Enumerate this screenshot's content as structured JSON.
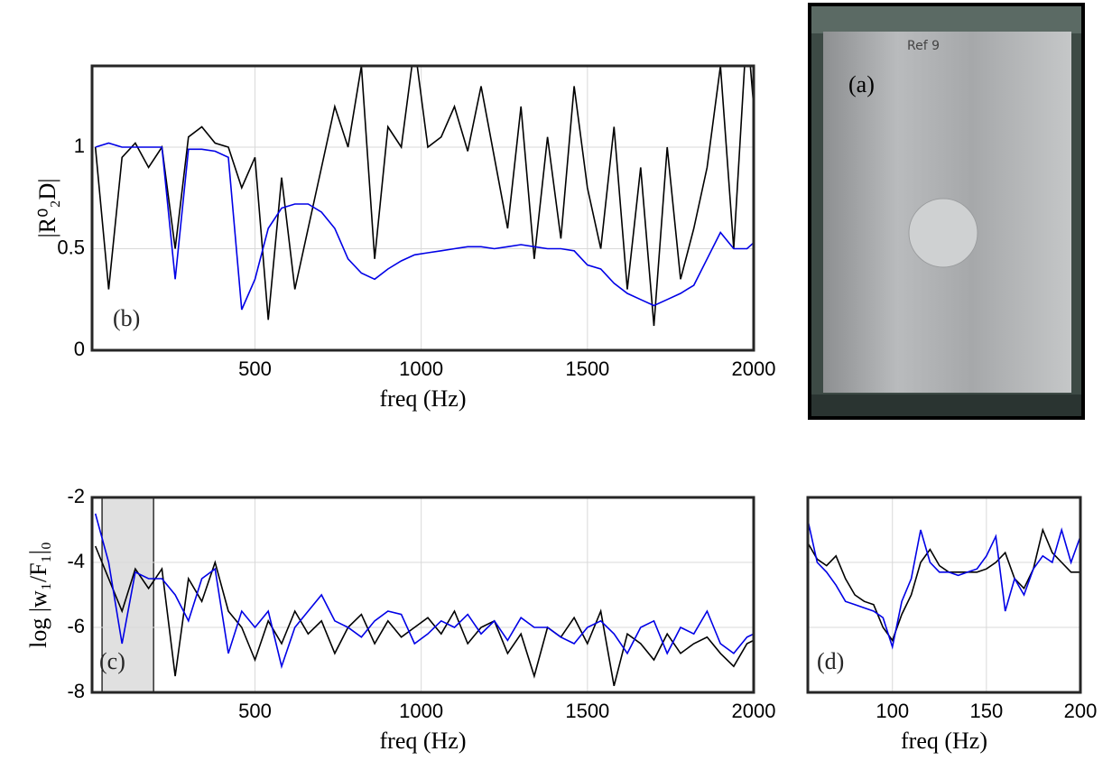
{
  "chart_data": [
    {
      "type": "line",
      "annotation": "(b)",
      "xlabel": "freq (Hz)",
      "ylabel": "|R⁰₂D|",
      "xlim": [
        10,
        2000
      ],
      "ylim": [
        0,
        1.4
      ],
      "xticks": [
        500,
        1000,
        1500,
        2000
      ],
      "yticks": [
        0,
        0.5,
        1
      ],
      "grid": true,
      "x": [
        20,
        60,
        100,
        140,
        180,
        220,
        260,
        300,
        340,
        380,
        420,
        460,
        500,
        540,
        580,
        620,
        660,
        700,
        740,
        780,
        820,
        860,
        900,
        940,
        980,
        1020,
        1060,
        1100,
        1140,
        1180,
        1220,
        1260,
        1300,
        1340,
        1380,
        1420,
        1460,
        1500,
        1540,
        1580,
        1620,
        1660,
        1700,
        1740,
        1780,
        1820,
        1860,
        1900,
        1940,
        1980,
        2000
      ],
      "series": [
        {
          "color": "#000000",
          "values": [
            1.0,
            0.3,
            0.95,
            1.02,
            0.9,
            1.0,
            0.5,
            1.05,
            1.1,
            1.02,
            1.0,
            0.8,
            0.95,
            0.15,
            0.85,
            0.3,
            0.6,
            0.9,
            1.2,
            1.0,
            1.4,
            0.45,
            1.1,
            1.0,
            1.5,
            1.0,
            1.05,
            1.2,
            0.98,
            1.3,
            0.95,
            0.6,
            1.2,
            0.45,
            1.05,
            0.55,
            1.3,
            0.8,
            0.5,
            1.1,
            0.3,
            0.9,
            0.12,
            1.0,
            0.35,
            0.6,
            0.9,
            1.4,
            0.5,
            1.6,
            1.2
          ]
        },
        {
          "color": "#0000e6",
          "values": [
            1.0,
            1.02,
            1.0,
            1.0,
            1.0,
            1.0,
            0.35,
            0.99,
            0.99,
            0.98,
            0.95,
            0.2,
            0.35,
            0.6,
            0.7,
            0.72,
            0.72,
            0.68,
            0.6,
            0.45,
            0.38,
            0.35,
            0.4,
            0.44,
            0.47,
            0.48,
            0.49,
            0.5,
            0.51,
            0.51,
            0.5,
            0.51,
            0.52,
            0.51,
            0.5,
            0.5,
            0.49,
            0.42,
            0.4,
            0.33,
            0.28,
            0.25,
            0.22,
            0.25,
            0.28,
            0.32,
            0.45,
            0.58,
            0.5,
            0.5,
            0.53
          ]
        }
      ]
    },
    {
      "type": "line",
      "annotation": "(c)",
      "xlabel": "freq (Hz)",
      "ylabel": "log |w₁/F₁|₀",
      "xlim": [
        10,
        2000
      ],
      "ylim": [
        -8,
        -2
      ],
      "xticks": [
        500,
        1000,
        1500,
        2000
      ],
      "yticks": [
        -8,
        -6,
        -4,
        -2
      ],
      "grid": true,
      "highlight_x": [
        40,
        195
      ],
      "x": [
        20,
        60,
        100,
        140,
        180,
        220,
        260,
        300,
        340,
        380,
        420,
        460,
        500,
        540,
        580,
        620,
        660,
        700,
        740,
        780,
        820,
        860,
        900,
        940,
        980,
        1020,
        1060,
        1100,
        1140,
        1180,
        1220,
        1260,
        1300,
        1340,
        1380,
        1420,
        1460,
        1500,
        1540,
        1580,
        1620,
        1660,
        1700,
        1740,
        1780,
        1820,
        1860,
        1900,
        1940,
        1980,
        2000
      ],
      "series": [
        {
          "color": "#000000",
          "values": [
            -3.5,
            -4.5,
            -5.5,
            -4.2,
            -4.8,
            -4.2,
            -7.5,
            -4.5,
            -5.2,
            -4.0,
            -5.5,
            -6.0,
            -7.0,
            -5.8,
            -6.5,
            -5.5,
            -6.2,
            -5.8,
            -6.8,
            -6.0,
            -5.6,
            -6.5,
            -5.8,
            -6.3,
            -6.0,
            -5.7,
            -6.2,
            -5.5,
            -6.5,
            -6.0,
            -5.8,
            -6.8,
            -6.2,
            -7.5,
            -6.0,
            -6.3,
            -5.7,
            -6.5,
            -5.5,
            -7.8,
            -6.2,
            -6.5,
            -7.0,
            -6.2,
            -6.8,
            -6.5,
            -6.3,
            -6.8,
            -7.2,
            -6.5,
            -6.4
          ]
        },
        {
          "color": "#0000e6",
          "values": [
            -2.5,
            -4.0,
            -6.5,
            -4.3,
            -4.5,
            -4.5,
            -5.0,
            -5.8,
            -4.5,
            -4.2,
            -6.8,
            -5.5,
            -6.0,
            -5.5,
            -7.2,
            -6.0,
            -5.5,
            -5.0,
            -5.8,
            -6.0,
            -6.3,
            -5.8,
            -5.5,
            -5.6,
            -6.5,
            -6.2,
            -5.8,
            -6.0,
            -5.6,
            -6.2,
            -5.8,
            -6.4,
            -5.7,
            -6.0,
            -6.0,
            -6.3,
            -6.5,
            -6.0,
            -5.8,
            -6.2,
            -6.8,
            -6.0,
            -5.8,
            -6.8,
            -6.0,
            -6.2,
            -5.5,
            -6.5,
            -6.8,
            -6.3,
            -6.2
          ]
        }
      ]
    },
    {
      "type": "line",
      "annotation": "(d)",
      "xlabel": "freq (Hz)",
      "xlim": [
        55,
        200
      ],
      "ylim": [
        -8,
        -2
      ],
      "xticks": [
        100,
        150,
        200
      ],
      "yticks": [
        -8,
        -6,
        -4,
        -2
      ],
      "grid": true,
      "ytick_labels": false,
      "x": [
        55,
        60,
        65,
        70,
        75,
        80,
        85,
        90,
        95,
        100,
        105,
        110,
        115,
        120,
        125,
        130,
        135,
        140,
        145,
        150,
        155,
        160,
        165,
        170,
        175,
        180,
        185,
        190,
        195,
        200
      ],
      "series": [
        {
          "color": "#000000",
          "values": [
            -3.4,
            -3.9,
            -4.1,
            -3.8,
            -4.5,
            -5.0,
            -5.2,
            -5.3,
            -6.0,
            -6.4,
            -5.6,
            -5.0,
            -4.0,
            -3.6,
            -4.1,
            -4.3,
            -4.3,
            -4.3,
            -4.3,
            -4.2,
            -4.0,
            -3.7,
            -4.5,
            -4.8,
            -4.2,
            -3.0,
            -3.7,
            -4.0,
            -4.3,
            -4.3
          ]
        },
        {
          "color": "#0000e6",
          "values": [
            -2.7,
            -4.0,
            -4.3,
            -4.7,
            -5.2,
            -5.3,
            -5.4,
            -5.5,
            -5.7,
            -6.6,
            -5.2,
            -4.5,
            -3.0,
            -4.0,
            -4.3,
            -4.3,
            -4.4,
            -4.3,
            -4.2,
            -3.8,
            -3.2,
            -5.5,
            -4.5,
            -5.0,
            -4.2,
            -3.8,
            -4.0,
            -3.0,
            -4.0,
            -3.2
          ]
        }
      ]
    }
  ],
  "photo": {
    "label": "(a)",
    "inscription": "Ref 9"
  }
}
